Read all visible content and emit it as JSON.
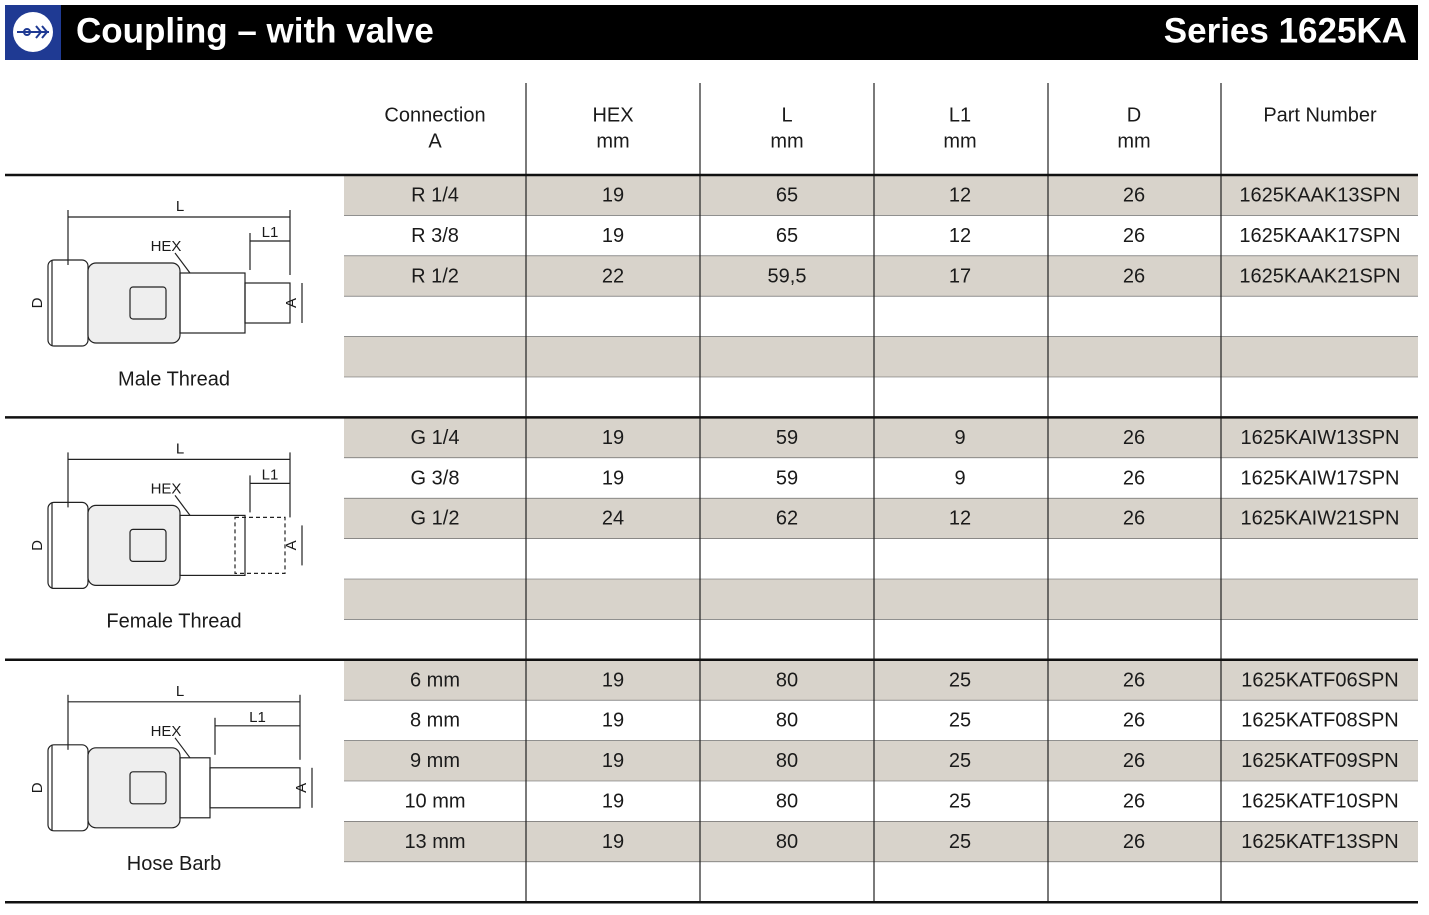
{
  "header": {
    "title": "Coupling – with valve",
    "series": "Series 1625KA"
  },
  "table": {
    "columns": [
      {
        "line1": "Connection",
        "line2": "A"
      },
      {
        "line1": "HEX",
        "line2": "mm"
      },
      {
        "line1": "L",
        "line2": "mm"
      },
      {
        "line1": "L1",
        "line2": "mm"
      },
      {
        "line1": "D",
        "line2": "mm"
      },
      {
        "line1": "Part Number"
      }
    ]
  },
  "sections": [
    {
      "name": "Male Thread",
      "labels": {
        "l": "L",
        "hex": "HEX",
        "l1": "L1",
        "d": "D",
        "a": "A"
      },
      "rows": [
        [
          "R 1/4",
          "19",
          "65",
          "12",
          "26",
          "1625KAAK13SPN"
        ],
        [
          "R 3/8",
          "19",
          "65",
          "12",
          "26",
          "1625KAAK17SPN"
        ],
        [
          "R 1/2",
          "22",
          "59,5",
          "17",
          "26",
          "1625KAAK21SPN"
        ]
      ]
    },
    {
      "name": "Female Thread",
      "labels": {
        "l": "L",
        "hex": "HEX",
        "l1": "L1",
        "d": "D",
        "a": "A"
      },
      "rows": [
        [
          "G 1/4",
          "19",
          "59",
          "9",
          "26",
          "1625KAIW13SPN"
        ],
        [
          "G 3/8",
          "19",
          "59",
          "9",
          "26",
          "1625KAIW17SPN"
        ],
        [
          "G 1/2",
          "24",
          "62",
          "12",
          "26",
          "1625KAIW21SPN"
        ]
      ]
    },
    {
      "name": "Hose Barb",
      "labels": {
        "l": "L",
        "hex": "HEX",
        "l1": "L1",
        "d": "D",
        "a": "A"
      },
      "rows": [
        [
          "6 mm",
          "19",
          "80",
          "25",
          "26",
          "1625KATF06SPN"
        ],
        [
          "8 mm",
          "19",
          "80",
          "25",
          "26",
          "1625KATF08SPN"
        ],
        [
          "9 mm",
          "19",
          "80",
          "25",
          "26",
          "1625KATF09SPN"
        ],
        [
          "10 mm",
          "19",
          "80",
          "25",
          "26",
          "1625KATF10SPN"
        ],
        [
          "13 mm",
          "19",
          "80",
          "25",
          "26",
          "1625KATF13SPN"
        ]
      ]
    }
  ]
}
